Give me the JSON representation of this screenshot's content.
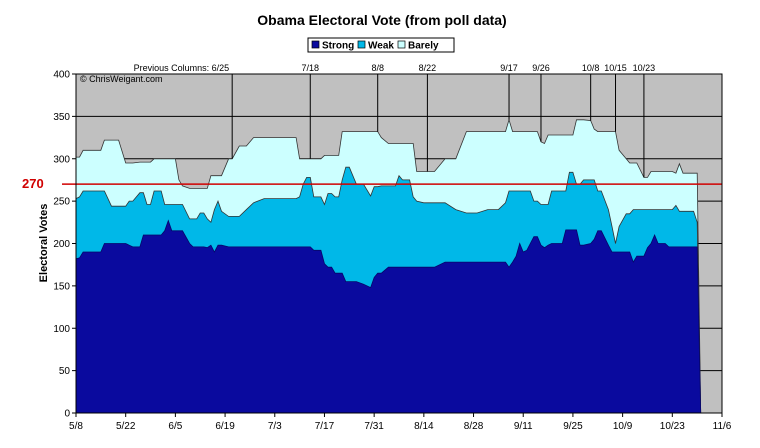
{
  "chart_data": {
    "type": "area",
    "title": "Obama Electoral Vote (from poll data)",
    "ylabel": "Electoral Votes",
    "xlabel": "",
    "credit": "© ChrisWeigant.com",
    "ylim": [
      0,
      400
    ],
    "yticks": [
      "0",
      "50",
      "100",
      "150",
      "200",
      "250",
      "300",
      "350",
      "400"
    ],
    "xlim_days": [
      0,
      182
    ],
    "xticks": [
      {
        "day": 0,
        "label": "5/8"
      },
      {
        "day": 14,
        "label": "5/22"
      },
      {
        "day": 28,
        "label": "6/5"
      },
      {
        "day": 42,
        "label": "6/19"
      },
      {
        "day": 56,
        "label": "7/3"
      },
      {
        "day": 70,
        "label": "7/17"
      },
      {
        "day": 84,
        "label": "7/31"
      },
      {
        "day": 98,
        "label": "8/14"
      },
      {
        "day": 112,
        "label": "8/28"
      },
      {
        "day": 126,
        "label": "9/11"
      },
      {
        "day": 140,
        "label": "9/25"
      },
      {
        "day": 154,
        "label": "10/9"
      },
      {
        "day": 168,
        "label": "10/23"
      },
      {
        "day": 182,
        "label": "11/6"
      }
    ],
    "grid": "horizontal",
    "legend_position": "top",
    "colors": {
      "strong": "#0a0a9e",
      "weak": "#00b8e8",
      "barely": "#ccffff",
      "background": "#c0c0c0",
      "reference": "#d00000",
      "grid": "#000000"
    },
    "legend": [
      {
        "key": "strong",
        "label": "Strong"
      },
      {
        "key": "weak",
        "label": "Weak"
      },
      {
        "key": "barely",
        "label": "Barely"
      }
    ],
    "reference_line": {
      "value": 270,
      "label": "270"
    },
    "annotations": [
      {
        "day": 44,
        "label": "Previous Columns: 6/25"
      },
      {
        "day": 66,
        "label": "7/18"
      },
      {
        "day": 85,
        "label": "8/8"
      },
      {
        "day": 99,
        "label": "8/22"
      },
      {
        "day": 122,
        "label": "9/17"
      },
      {
        "day": 131,
        "label": "9/26"
      },
      {
        "day": 145,
        "label": "10/8"
      },
      {
        "day": 152,
        "label": "10/15"
      },
      {
        "day": 160,
        "label": "10/23"
      }
    ],
    "x_days": [
      0,
      1,
      2,
      3,
      5,
      7,
      8,
      10,
      12,
      14,
      15,
      16,
      18,
      19,
      20,
      21,
      22,
      24,
      25,
      26,
      27,
      28,
      29,
      30,
      32,
      33,
      34,
      35,
      36,
      37,
      38,
      39,
      40,
      41,
      43,
      44,
      46,
      48,
      50,
      53,
      56,
      60,
      62,
      63,
      64,
      65,
      66,
      67,
      69,
      70,
      71,
      72,
      73,
      74,
      75,
      76,
      77,
      79,
      81,
      83,
      84,
      85,
      86,
      88,
      90,
      91,
      92,
      93,
      94,
      95,
      96,
      98,
      101,
      104,
      107,
      110,
      113,
      116,
      119,
      121,
      122,
      123,
      124,
      125,
      126,
      127,
      128,
      129,
      130,
      131,
      132,
      133,
      134,
      135,
      136,
      137,
      138,
      139,
      140,
      141,
      142,
      143,
      145,
      146,
      147,
      148,
      150,
      151,
      152,
      153,
      155,
      156,
      157,
      158,
      160,
      161,
      162,
      163,
      164,
      165,
      166,
      167,
      168,
      169,
      170,
      171,
      172,
      173,
      174,
      175,
      176
    ],
    "series": [
      {
        "key": "strong",
        "values": [
          182,
          183,
          190,
          190,
          190,
          190,
          200,
          200,
          200,
          200,
          198,
          196,
          196,
          210,
          210,
          210,
          210,
          210,
          215,
          227,
          215,
          215,
          215,
          215,
          200,
          196,
          196,
          196,
          196,
          195,
          198,
          190,
          198,
          198,
          196,
          196,
          196,
          196,
          196,
          196,
          196,
          196,
          196,
          196,
          196,
          196,
          196,
          192,
          192,
          176,
          172,
          172,
          165,
          165,
          165,
          155,
          155,
          155,
          152,
          148,
          160,
          165,
          165,
          172,
          172,
          172,
          172,
          172,
          172,
          172,
          172,
          172,
          172,
          178,
          178,
          178,
          178,
          178,
          178,
          178,
          172,
          178,
          185,
          200,
          190,
          192,
          200,
          208,
          208,
          198,
          195,
          198,
          200,
          200,
          200,
          200,
          216,
          216,
          216,
          216,
          198,
          198,
          200,
          205,
          215,
          215,
          198,
          190,
          190,
          190,
          190,
          190,
          178,
          185,
          185,
          195,
          200,
          210,
          200,
          200,
          200,
          196,
          196,
          196,
          196,
          196,
          196,
          196,
          196,
          196,
          0
        ]
      },
      {
        "key": "weak",
        "values": [
          253,
          255,
          262,
          262,
          262,
          262,
          262,
          244,
          244,
          244,
          250,
          250,
          260,
          260,
          246,
          246,
          262,
          262,
          246,
          246,
          246,
          246,
          246,
          246,
          229,
          229,
          229,
          236,
          236,
          229,
          225,
          240,
          250,
          238,
          232,
          232,
          232,
          240,
          248,
          253,
          253,
          253,
          253,
          255,
          270,
          278,
          278,
          255,
          255,
          246,
          259,
          259,
          255,
          255,
          275,
          290,
          290,
          270,
          270,
          256,
          267,
          267,
          268,
          268,
          268,
          280,
          275,
          275,
          275,
          255,
          250,
          248,
          248,
          248,
          240,
          236,
          236,
          240,
          240,
          248,
          262,
          262,
          262,
          262,
          262,
          262,
          262,
          250,
          250,
          246,
          246,
          246,
          262,
          262,
          262,
          262,
          262,
          284,
          284,
          270,
          270,
          275,
          275,
          275,
          262,
          262,
          240,
          220,
          200,
          220,
          235,
          235,
          240,
          240,
          240,
          240,
          240,
          240,
          240,
          240,
          240,
          240,
          240,
          245,
          238,
          238,
          238,
          238,
          238,
          225,
          0
        ]
      },
      {
        "key": "barely",
        "values": [
          302,
          302,
          310,
          310,
          310,
          310,
          322,
          322,
          322,
          295,
          295,
          295,
          296,
          296,
          296,
          296,
          300,
          300,
          300,
          300,
          300,
          300,
          275,
          268,
          265,
          265,
          265,
          265,
          265,
          265,
          280,
          280,
          280,
          280,
          300,
          300,
          315,
          315,
          325,
          325,
          325,
          325,
          325,
          300,
          300,
          300,
          300,
          300,
          300,
          304,
          304,
          304,
          304,
          304,
          332,
          332,
          332,
          332,
          332,
          332,
          332,
          332,
          325,
          318,
          318,
          318,
          318,
          318,
          318,
          318,
          285,
          285,
          285,
          300,
          300,
          332,
          332,
          332,
          332,
          332,
          346,
          332,
          332,
          332,
          332,
          332,
          332,
          332,
          332,
          320,
          318,
          328,
          328,
          328,
          328,
          328,
          328,
          328,
          328,
          346,
          346,
          346,
          345,
          335,
          332,
          332,
          332,
          332,
          332,
          310,
          300,
          295,
          295,
          295,
          278,
          278,
          285,
          285,
          285,
          285,
          285,
          285,
          285,
          283,
          294,
          283,
          283,
          283,
          283,
          283,
          0
        ]
      }
    ]
  }
}
